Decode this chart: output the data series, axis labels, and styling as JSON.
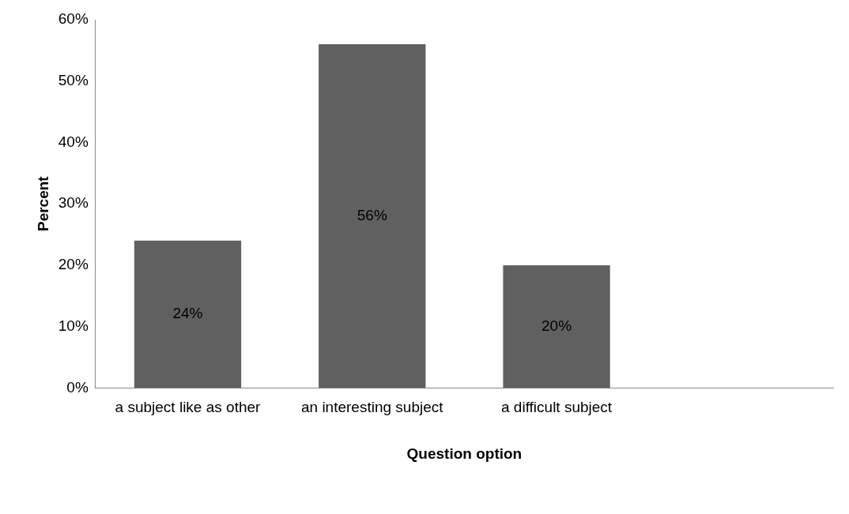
{
  "chart_data": {
    "type": "bar",
    "xlabel": "Question option",
    "ylabel": "Percent",
    "categories": [
      "a subject like as other",
      "an interesting subject",
      "a difficult subject",
      null
    ],
    "values": [
      24,
      56,
      20,
      null
    ],
    "value_labels": [
      "24%",
      "56%",
      "20%",
      null
    ],
    "color": "#606060",
    "ylim": [
      0,
      60
    ],
    "yticks": [
      {
        "value": 0,
        "label": "0%"
      },
      {
        "value": 10,
        "label": "10%"
      },
      {
        "value": 20,
        "label": "20%"
      },
      {
        "value": 30,
        "label": "30%"
      },
      {
        "value": 40,
        "label": "40%"
      },
      {
        "value": 50,
        "label": "50%"
      },
      {
        "value": 60,
        "label": "60%"
      }
    ],
    "grid": false,
    "legend": false
  }
}
